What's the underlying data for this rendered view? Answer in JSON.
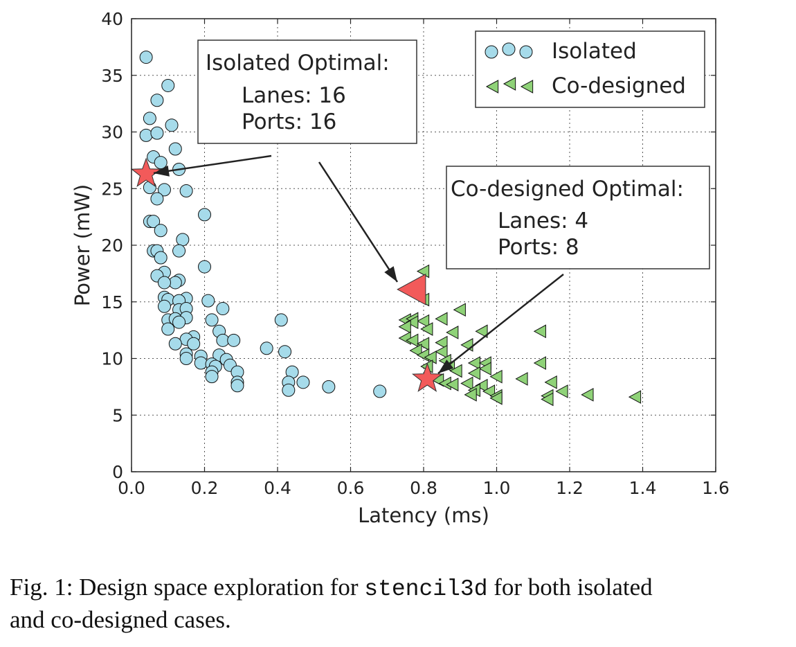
{
  "chart_data": {
    "type": "scatter",
    "xlabel": "Latency (ms)",
    "ylabel": "Power (mW)",
    "xlim": [
      0.0,
      1.6
    ],
    "ylim": [
      0,
      40
    ],
    "x_ticks": [
      "0.0",
      "0.2",
      "0.4",
      "0.6",
      "0.8",
      "1.0",
      "1.2",
      "1.4",
      "1.6"
    ],
    "y_ticks": [
      "0",
      "5",
      "10",
      "15",
      "20",
      "25",
      "30",
      "35",
      "40"
    ],
    "grid": true,
    "legend_position": "top-right",
    "series": [
      {
        "name": "Isolated",
        "marker": "circle",
        "color": "#a6dbea",
        "points": [
          [
            0.04,
            36.6
          ],
          [
            0.1,
            34.1
          ],
          [
            0.07,
            32.8
          ],
          [
            0.05,
            31.2
          ],
          [
            0.11,
            30.6
          ],
          [
            0.04,
            29.7
          ],
          [
            0.07,
            29.9
          ],
          [
            0.12,
            28.5
          ],
          [
            0.06,
            27.8
          ],
          [
            0.08,
            27.3
          ],
          [
            0.13,
            26.7
          ],
          [
            0.05,
            25.1
          ],
          [
            0.09,
            24.9
          ],
          [
            0.15,
            24.8
          ],
          [
            0.07,
            24.1
          ],
          [
            0.2,
            22.7
          ],
          [
            0.05,
            22.1
          ],
          [
            0.06,
            22.1
          ],
          [
            0.08,
            21.3
          ],
          [
            0.14,
            20.5
          ],
          [
            0.06,
            19.5
          ],
          [
            0.07,
            19.5
          ],
          [
            0.13,
            19.5
          ],
          [
            0.08,
            18.9
          ],
          [
            0.2,
            18.1
          ],
          [
            0.09,
            17.6
          ],
          [
            0.07,
            17.3
          ],
          [
            0.13,
            16.9
          ],
          [
            0.12,
            16.7
          ],
          [
            0.09,
            16.7
          ],
          [
            0.09,
            15.4
          ],
          [
            0.1,
            15.2
          ],
          [
            0.15,
            15.3
          ],
          [
            0.13,
            15.1
          ],
          [
            0.21,
            15.1
          ],
          [
            0.09,
            14.6
          ],
          [
            0.13,
            14.3
          ],
          [
            0.15,
            14.4
          ],
          [
            0.25,
            14.4
          ],
          [
            0.15,
            13.6
          ],
          [
            0.1,
            13.4
          ],
          [
            0.12,
            13.5
          ],
          [
            0.22,
            13.4
          ],
          [
            0.13,
            13.2
          ],
          [
            0.41,
            13.4
          ],
          [
            0.1,
            12.6
          ],
          [
            0.24,
            12.4
          ],
          [
            0.17,
            11.9
          ],
          [
            0.15,
            11.7
          ],
          [
            0.25,
            11.6
          ],
          [
            0.28,
            11.6
          ],
          [
            0.12,
            11.3
          ],
          [
            0.17,
            11.3
          ],
          [
            0.37,
            10.9
          ],
          [
            0.42,
            10.6
          ],
          [
            0.15,
            10.4
          ],
          [
            0.19,
            10.2
          ],
          [
            0.15,
            10.0
          ],
          [
            0.24,
            10.3
          ],
          [
            0.19,
            9.6
          ],
          [
            0.22,
            9.5
          ],
          [
            0.26,
            9.9
          ],
          [
            0.23,
            9.3
          ],
          [
            0.27,
            9.4
          ],
          [
            0.22,
            8.8
          ],
          [
            0.44,
            8.8
          ],
          [
            0.29,
            8.8
          ],
          [
            0.22,
            8.4
          ],
          [
            0.29,
            7.9
          ],
          [
            0.29,
            7.6
          ],
          [
            0.47,
            7.9
          ],
          [
            0.43,
            7.9
          ],
          [
            0.54,
            7.5
          ],
          [
            0.43,
            7.2
          ],
          [
            0.68,
            7.1
          ]
        ]
      },
      {
        "name": "Co-designed",
        "marker": "triangle-left",
        "color": "#8fd278",
        "points": [
          [
            0.8,
            17.7
          ],
          [
            0.8,
            15.2
          ],
          [
            0.9,
            14.3
          ],
          [
            0.75,
            13.4
          ],
          [
            0.77,
            13.5
          ],
          [
            0.85,
            13.5
          ],
          [
            0.8,
            13.3
          ],
          [
            0.77,
            13.2
          ],
          [
            0.75,
            12.8
          ],
          [
            0.88,
            12.3
          ],
          [
            0.81,
            12.6
          ],
          [
            0.96,
            12.4
          ],
          [
            1.12,
            12.4
          ],
          [
            0.75,
            11.8
          ],
          [
            0.77,
            11.6
          ],
          [
            0.8,
            11.3
          ],
          [
            0.85,
            11.4
          ],
          [
            0.92,
            11.2
          ],
          [
            0.78,
            10.7
          ],
          [
            0.85,
            10.6
          ],
          [
            0.8,
            10.3
          ],
          [
            0.82,
            10.1
          ],
          [
            0.86,
            9.8
          ],
          [
            0.94,
            9.6
          ],
          [
            0.97,
            9.6
          ],
          [
            1.12,
            9.6
          ],
          [
            0.81,
            9.3
          ],
          [
            0.87,
            9.3
          ],
          [
            0.97,
            9.1
          ],
          [
            0.89,
            8.9
          ],
          [
            0.94,
            8.7
          ],
          [
            1.0,
            8.4
          ],
          [
            1.07,
            8.2
          ],
          [
            0.84,
            8.1
          ],
          [
            0.86,
            7.8
          ],
          [
            0.88,
            7.7
          ],
          [
            0.92,
            7.8
          ],
          [
            0.96,
            7.6
          ],
          [
            1.15,
            7.9
          ],
          [
            0.94,
            7.2
          ],
          [
            0.98,
            7.1
          ],
          [
            1.18,
            7.1
          ],
          [
            0.93,
            6.8
          ],
          [
            1.0,
            6.7
          ],
          [
            1.14,
            6.7
          ],
          [
            1.25,
            6.8
          ],
          [
            1.38,
            6.6
          ],
          [
            1.0,
            6.5
          ],
          [
            1.14,
            6.4
          ]
        ]
      }
    ],
    "highlights": [
      {
        "marker": "star",
        "x": 0.04,
        "y": 26.3,
        "color": "#f25a5a"
      },
      {
        "marker": "triangle-left",
        "x": 0.77,
        "y": 16.1,
        "color": "#f25a5a"
      },
      {
        "marker": "star",
        "x": 0.81,
        "y": 8.2,
        "color": "#f25a5a"
      }
    ],
    "annotations": [
      {
        "lines": [
          "Isolated Optimal:",
          "Lanes: 16",
          "Ports: 16"
        ]
      },
      {
        "lines": [
          "Co-designed Optimal:",
          "Lanes: 4",
          "Ports: 8"
        ]
      }
    ]
  },
  "caption": {
    "prefix": "Fig. 1: Design space exploration for ",
    "code": "stencil3d",
    "suffix": " for both isolated",
    "line2": "and co-designed cases."
  }
}
